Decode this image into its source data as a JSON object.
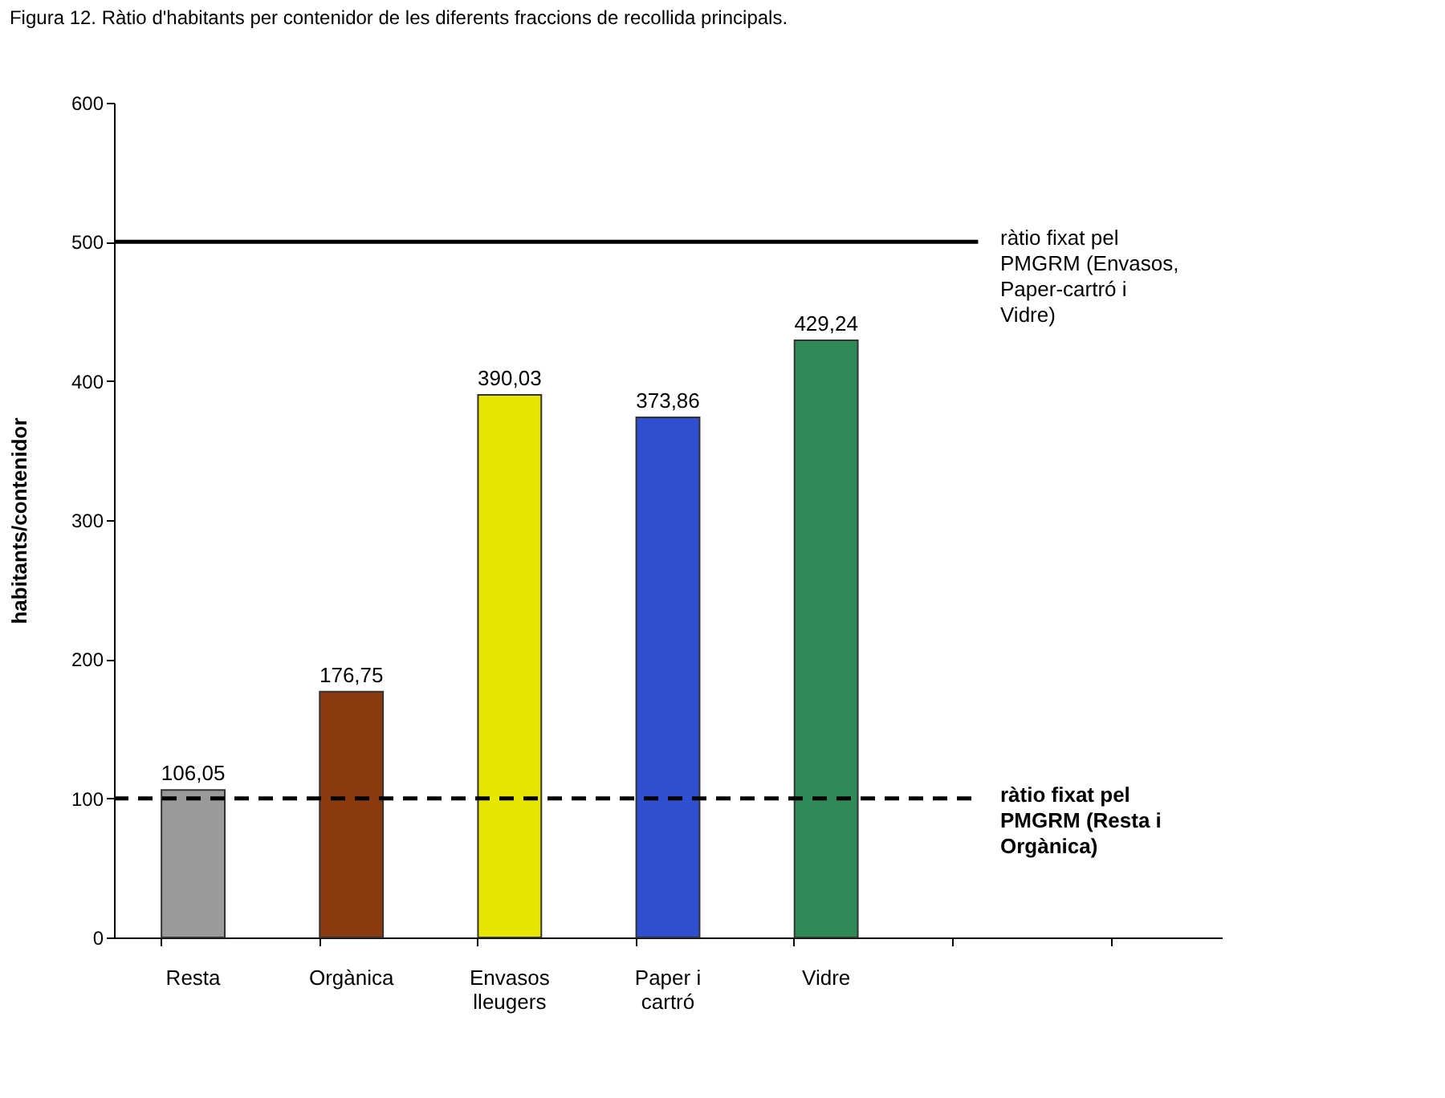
{
  "chart_data": {
    "type": "bar",
    "title": "Figura 12. Ràtio d'habitants per contenidor de les diferents fraccions de recollida principals.",
    "ylabel": "habitants/contenidor",
    "categories": [
      "Resta",
      "Orgànica",
      "Envasos lleugers",
      "Paper i cartró",
      "Vidre",
      null,
      null
    ],
    "values": [
      106.05,
      176.75,
      390.03,
      373.86,
      429.24,
      null,
      null
    ],
    "value_labels": [
      "106,05",
      "176,75",
      "390,03",
      "373,86",
      "429,24",
      null,
      null
    ],
    "colors": [
      "#9a9a9a",
      "#8b3a0f",
      "#e6e600",
      "#2f4fd0",
      "#2e8b57",
      "#000000",
      "#000000"
    ],
    "ylim": [
      0,
      600
    ],
    "yticks": [
      0,
      100,
      200,
      300,
      400,
      500,
      600
    ],
    "grid": false,
    "ref_lines": [
      {
        "axis": "y",
        "value": 500,
        "label": "ràtio fixat pel PMGRM (Envasos, Paper-cartró i Vidre)",
        "color": "#000000",
        "line_style": "solid"
      },
      {
        "axis": "y",
        "value": 100,
        "label": "ràtio fixat pel PMGRM (Resta i Orgànica)",
        "color": "#000000",
        "line_style": "dashed"
      }
    ]
  }
}
